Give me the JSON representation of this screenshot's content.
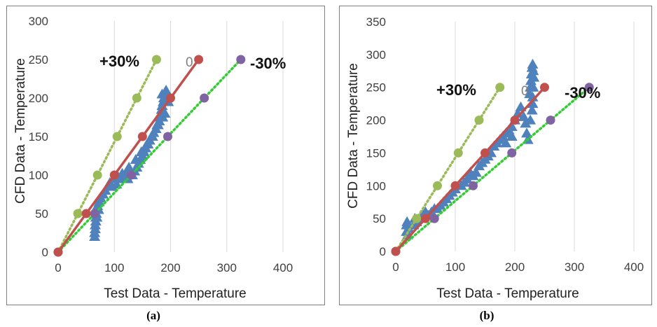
{
  "figure": {
    "captions": [
      "(a)",
      "(b)"
    ]
  },
  "colors": {
    "measured": "#4f81bd",
    "plus30": "#9bbb59",
    "zero": "#c0504d",
    "minus30": "#8064a2",
    "minus30_line": "#33cc33",
    "grid": "#d9d9d9"
  },
  "chart_data": [
    {
      "type": "scatter",
      "title": "",
      "xlabel": "Test Data - Temperature",
      "ylabel": "CFD Data - Temperature",
      "xlim": [
        0,
        400
      ],
      "ylim": [
        0,
        300
      ],
      "xticks": [
        "0",
        "100",
        "200",
        "300",
        "400"
      ],
      "yticks": [
        "0",
        "50",
        "100",
        "150",
        "200",
        "250",
        "300"
      ],
      "grid": "vertical",
      "annotations": {
        "plus30": "+30%",
        "zero": "0",
        "minus30": "-30%"
      },
      "series": [
        {
          "role": "measured",
          "marker": "triangle",
          "points": [
            [
              65,
              20
            ],
            [
              65,
              25
            ],
            [
              66,
              30
            ],
            [
              66,
              35
            ],
            [
              67,
              40
            ],
            [
              67,
              45
            ],
            [
              68,
              50
            ],
            [
              68,
              55
            ],
            [
              70,
              60
            ],
            [
              73,
              65
            ],
            [
              76,
              70
            ],
            [
              80,
              75
            ],
            [
              84,
              80
            ],
            [
              88,
              85
            ],
            [
              92,
              90
            ],
            [
              100,
              95
            ],
            [
              105,
              100
            ],
            [
              112,
              95
            ],
            [
              118,
              100
            ],
            [
              122,
              105
            ],
            [
              126,
              110
            ],
            [
              128,
              100
            ],
            [
              132,
              100
            ],
            [
              136,
              105
            ],
            [
              140,
              110
            ],
            [
              143,
              115
            ],
            [
              146,
              120
            ],
            [
              150,
              125
            ],
            [
              153,
              130
            ],
            [
              156,
              135
            ],
            [
              160,
              140
            ],
            [
              163,
              145
            ],
            [
              166,
              150
            ],
            [
              170,
              155
            ],
            [
              174,
              160
            ],
            [
              178,
              165
            ],
            [
              180,
              170
            ],
            [
              182,
              175
            ],
            [
              183,
              180
            ],
            [
              184,
              185
            ],
            [
              185,
              190
            ],
            [
              187,
              195
            ],
            [
              188,
              200
            ],
            [
              190,
              205
            ],
            [
              192,
              210
            ],
            [
              185,
              205
            ],
            [
              194,
              200
            ],
            [
              196,
              195
            ],
            [
              190,
              180
            ],
            [
              186,
              175
            ],
            [
              176,
              165
            ],
            [
              168,
              150
            ],
            [
              158,
              140
            ],
            [
              148,
              130
            ],
            [
              138,
              120
            ],
            [
              96,
              85
            ],
            [
              104,
              88
            ],
            [
              124,
              95
            ],
            [
              114,
              102
            ],
            [
              72,
              55
            ],
            [
              69,
              45
            ]
          ]
        },
        {
          "role": "plus30",
          "name": "+30%",
          "points": [
            [
              0,
              0
            ],
            [
              35,
              50
            ],
            [
              70,
              100
            ],
            [
              105,
              150
            ],
            [
              140,
              200
            ],
            [
              175,
              250
            ]
          ]
        },
        {
          "role": "zero",
          "name": "0",
          "points": [
            [
              0,
              0
            ],
            [
              50,
              50
            ],
            [
              100,
              100
            ],
            [
              150,
              150
            ],
            [
              200,
              200
            ],
            [
              250,
              250
            ]
          ]
        },
        {
          "role": "minus30",
          "name": "-30%",
          "points": [
            [
              0,
              0
            ],
            [
              65,
              50
            ],
            [
              130,
              100
            ],
            [
              195,
              150
            ],
            [
              260,
              200
            ],
            [
              325,
              250
            ]
          ]
        }
      ]
    },
    {
      "type": "scatter",
      "title": "",
      "xlabel": "Test Data - Temperature",
      "ylabel": "CFD Data - Temperature",
      "xlim": [
        0,
        400
      ],
      "ylim": [
        0,
        350
      ],
      "xticks": [
        "0",
        "100",
        "200",
        "300",
        "400"
      ],
      "yticks": [
        "0",
        "50",
        "100",
        "150",
        "200",
        "250",
        "300",
        "350"
      ],
      "grid": "vertical",
      "annotations": {
        "plus30": "+30%",
        "zero": "0",
        "minus30": "-30%"
      },
      "series": [
        {
          "role": "measured",
          "marker": "triangle",
          "points": [
            [
              18,
              30
            ],
            [
              18,
              40
            ],
            [
              19,
              45
            ],
            [
              20,
              25
            ],
            [
              22,
              35
            ],
            [
              30,
              40
            ],
            [
              32,
              50
            ],
            [
              35,
              45
            ],
            [
              40,
              50
            ],
            [
              45,
              55
            ],
            [
              50,
              60
            ],
            [
              55,
              55
            ],
            [
              60,
              60
            ],
            [
              65,
              65
            ],
            [
              70,
              65
            ],
            [
              75,
              70
            ],
            [
              80,
              75
            ],
            [
              85,
              80
            ],
            [
              90,
              85
            ],
            [
              95,
              90
            ],
            [
              100,
              95
            ],
            [
              110,
              100
            ],
            [
              115,
              105
            ],
            [
              120,
              110
            ],
            [
              125,
              120
            ],
            [
              130,
              115
            ],
            [
              135,
              120
            ],
            [
              140,
              130
            ],
            [
              145,
              135
            ],
            [
              150,
              140
            ],
            [
              155,
              145
            ],
            [
              160,
              150
            ],
            [
              165,
              160
            ],
            [
              170,
              165
            ],
            [
              175,
              170
            ],
            [
              180,
              175
            ],
            [
              185,
              180
            ],
            [
              190,
              185
            ],
            [
              195,
              190
            ],
            [
              200,
              200
            ],
            [
              205,
              210
            ],
            [
              210,
              220
            ],
            [
              215,
              205
            ],
            [
              218,
              195
            ],
            [
              220,
              180
            ],
            [
              222,
              170
            ],
            [
              225,
              240
            ],
            [
              226,
              250
            ],
            [
              227,
              260
            ],
            [
              228,
              270
            ],
            [
              229,
              280
            ],
            [
              230,
              285
            ],
            [
              231,
              275
            ],
            [
              232,
              265
            ],
            [
              231,
              250
            ],
            [
              230,
              235
            ],
            [
              230,
              225
            ],
            [
              229,
              215
            ],
            [
              226,
              200
            ],
            [
              195,
              175
            ],
            [
              185,
              165
            ]
          ]
        },
        {
          "role": "plus30",
          "name": "+30%",
          "points": [
            [
              0,
              0
            ],
            [
              35,
              50
            ],
            [
              70,
              100
            ],
            [
              105,
              150
            ],
            [
              140,
              200
            ],
            [
              175,
              250
            ]
          ]
        },
        {
          "role": "zero",
          "name": "0",
          "points": [
            [
              0,
              0
            ],
            [
              50,
              50
            ],
            [
              100,
              100
            ],
            [
              150,
              150
            ],
            [
              200,
              200
            ],
            [
              250,
              250
            ]
          ]
        },
        {
          "role": "minus30",
          "name": "-30%",
          "points": [
            [
              0,
              0
            ],
            [
              65,
              50
            ],
            [
              130,
              100
            ],
            [
              195,
              150
            ],
            [
              260,
              200
            ],
            [
              325,
              250
            ]
          ]
        }
      ]
    }
  ]
}
